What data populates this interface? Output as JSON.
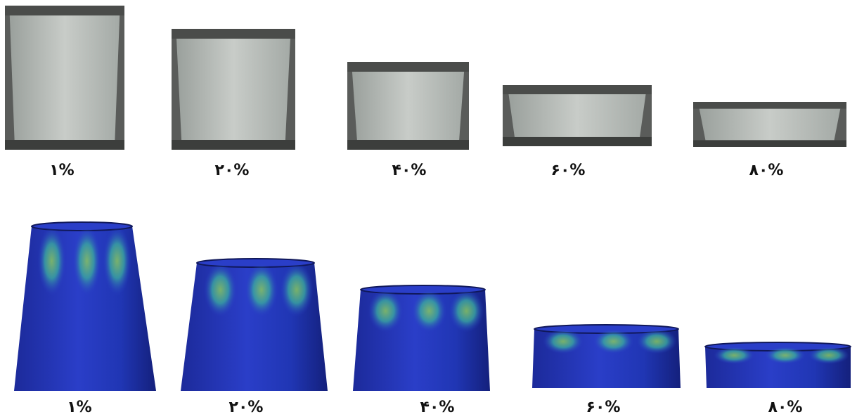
{
  "photo_row": {
    "labels": [
      "۱%",
      "۲۰%",
      "۴۰%",
      "۶۰%",
      "۸۰%"
    ]
  },
  "simulation_row": {
    "labels": [
      "۱%",
      "۲۰%",
      "۴۰%",
      "۶۰%",
      "۸۰%"
    ]
  }
}
